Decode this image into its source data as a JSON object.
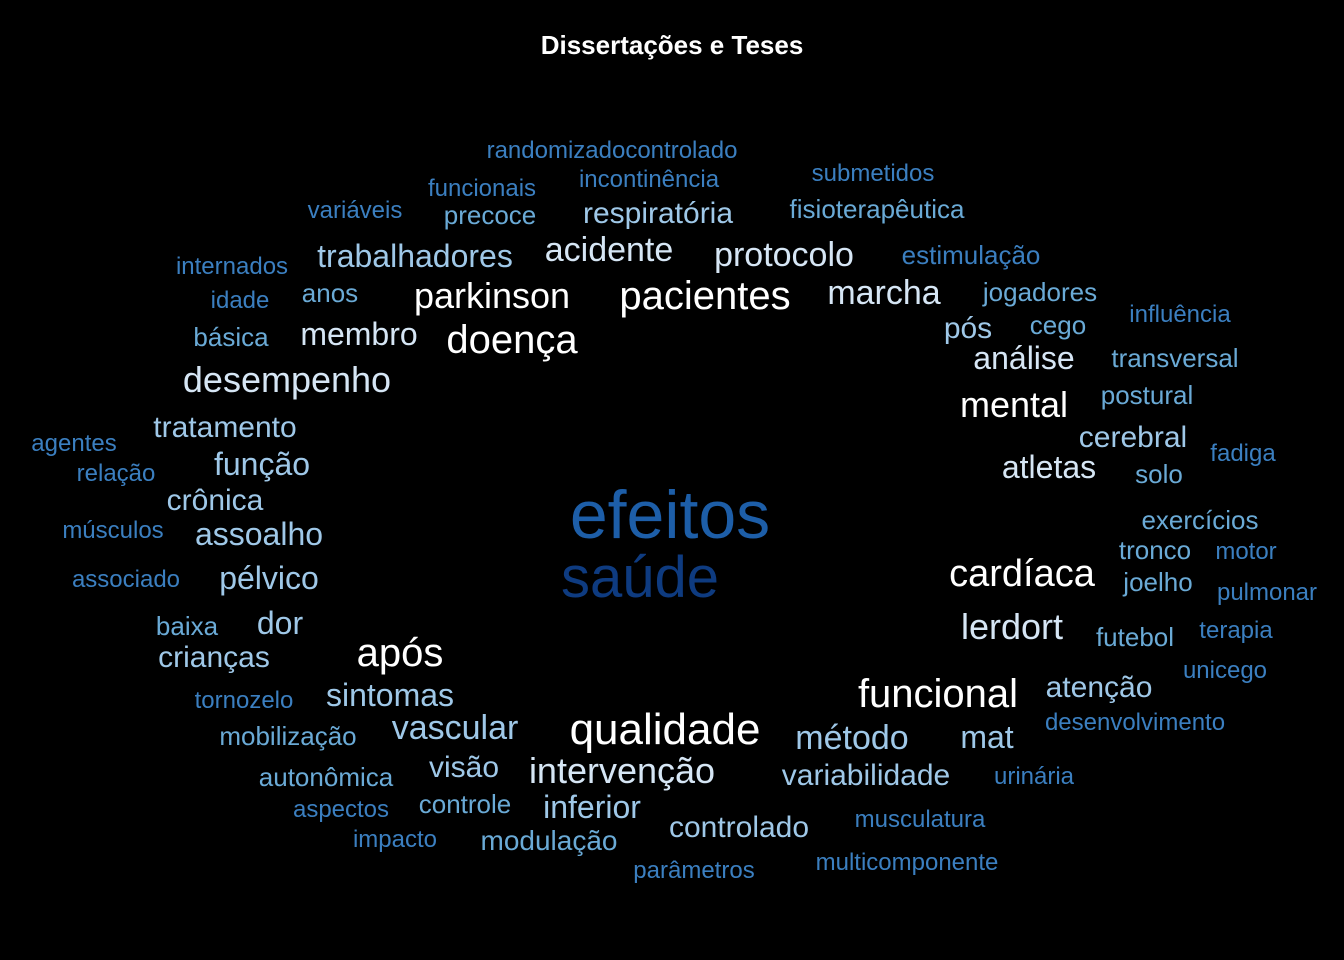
{
  "title": "Dissertações e Teses",
  "colors": {
    "background": "#000000",
    "title": "#ffffff",
    "tier_white": "#ffffff",
    "tier_pale": "#d6e6f5",
    "tier_light": "#9fc8e8",
    "tier_mid": "#6aaad6",
    "tier_blue": "#3b7fc0",
    "tier_deep": "#1d5ea8",
    "tier_navy": "#0e3b80"
  },
  "words": [
    {
      "text": "efeitos",
      "tier": "tier_deep"
    },
    {
      "text": "saúde",
      "tier": "tier_navy"
    },
    {
      "text": "qualidade",
      "tier": "tier_white"
    },
    {
      "text": "pacientes",
      "tier": "tier_white"
    },
    {
      "text": "funcional",
      "tier": "tier_white"
    },
    {
      "text": "cardíaca",
      "tier": "tier_white"
    },
    {
      "text": "após",
      "tier": "tier_white"
    },
    {
      "text": "doença",
      "tier": "tier_white"
    },
    {
      "text": "parkinson",
      "tier": "tier_white"
    },
    {
      "text": "mental",
      "tier": "tier_white"
    },
    {
      "text": "lerdort",
      "tier": "tier_pale"
    },
    {
      "text": "intervenção",
      "tier": "tier_pale"
    },
    {
      "text": "desempenho",
      "tier": "tier_pale"
    },
    {
      "text": "marcha",
      "tier": "tier_pale"
    },
    {
      "text": "protocolo",
      "tier": "tier_pale"
    },
    {
      "text": "acidente",
      "tier": "tier_pale"
    },
    {
      "text": "membro",
      "tier": "tier_pale"
    },
    {
      "text": "análise",
      "tier": "tier_pale"
    },
    {
      "text": "atletas",
      "tier": "tier_pale"
    },
    {
      "text": "método",
      "tier": "tier_light"
    },
    {
      "text": "vascular",
      "tier": "tier_light"
    },
    {
      "text": "sintomas",
      "tier": "tier_light"
    },
    {
      "text": "assoalho",
      "tier": "tier_light"
    },
    {
      "text": "pélvico",
      "tier": "tier_light"
    },
    {
      "text": "função",
      "tier": "tier_light"
    },
    {
      "text": "trabalhadores",
      "tier": "tier_light"
    },
    {
      "text": "respiratória",
      "tier": "tier_light"
    },
    {
      "text": "tratamento",
      "tier": "tier_light"
    },
    {
      "text": "crônica",
      "tier": "tier_light"
    },
    {
      "text": "dor",
      "tier": "tier_light"
    },
    {
      "text": "crianças",
      "tier": "tier_light"
    },
    {
      "text": "mat",
      "tier": "tier_light"
    },
    {
      "text": "variabilidade",
      "tier": "tier_light"
    },
    {
      "text": "controlado",
      "tier": "tier_light"
    },
    {
      "text": "visão",
      "tier": "tier_light"
    },
    {
      "text": "inferior",
      "tier": "tier_light"
    },
    {
      "text": "cerebral",
      "tier": "tier_light"
    },
    {
      "text": "pós",
      "tier": "tier_light"
    },
    {
      "text": "atenção",
      "tier": "tier_light"
    },
    {
      "text": "fisioterapêutica",
      "tier": "tier_mid"
    },
    {
      "text": "modulação",
      "tier": "tier_mid"
    },
    {
      "text": "autonômica",
      "tier": "tier_mid"
    },
    {
      "text": "mobilização",
      "tier": "tier_mid"
    },
    {
      "text": "controle",
      "tier": "tier_mid"
    },
    {
      "text": "baixa",
      "tier": "tier_mid"
    },
    {
      "text": "anos",
      "tier": "tier_mid"
    },
    {
      "text": "básica",
      "tier": "tier_mid"
    },
    {
      "text": "precoce",
      "tier": "tier_mid"
    },
    {
      "text": "jogadores",
      "tier": "tier_mid"
    },
    {
      "text": "cego",
      "tier": "tier_mid"
    },
    {
      "text": "transversal",
      "tier": "tier_mid"
    },
    {
      "text": "postural",
      "tier": "tier_mid"
    },
    {
      "text": "solo",
      "tier": "tier_mid"
    },
    {
      "text": "exercícios",
      "tier": "tier_mid"
    },
    {
      "text": "tronco",
      "tier": "tier_mid"
    },
    {
      "text": "joelho",
      "tier": "tier_mid"
    },
    {
      "text": "futebol",
      "tier": "tier_mid"
    },
    {
      "text": "estimulação",
      "tier": "tier_blue"
    },
    {
      "text": "randomizadocontrolado",
      "tier": "tier_blue"
    },
    {
      "text": "incontinência",
      "tier": "tier_blue"
    },
    {
      "text": "funcionais",
      "tier": "tier_blue"
    },
    {
      "text": "submetidos",
      "tier": "tier_blue"
    },
    {
      "text": "variáveis",
      "tier": "tier_blue"
    },
    {
      "text": "internados",
      "tier": "tier_blue"
    },
    {
      "text": "idade",
      "tier": "tier_blue"
    },
    {
      "text": "influência",
      "tier": "tier_blue"
    },
    {
      "text": "agentes",
      "tier": "tier_blue"
    },
    {
      "text": "relação",
      "tier": "tier_blue"
    },
    {
      "text": "músculos",
      "tier": "tier_blue"
    },
    {
      "text": "associado",
      "tier": "tier_blue"
    },
    {
      "text": "tornozelo",
      "tier": "tier_blue"
    },
    {
      "text": "aspectos",
      "tier": "tier_blue"
    },
    {
      "text": "impacto",
      "tier": "tier_blue"
    },
    {
      "text": "parâmetros",
      "tier": "tier_blue"
    },
    {
      "text": "multicomponente",
      "tier": "tier_blue"
    },
    {
      "text": "musculatura",
      "tier": "tier_blue"
    },
    {
      "text": "urinária",
      "tier": "tier_blue"
    },
    {
      "text": "desenvolvimento",
      "tier": "tier_blue"
    },
    {
      "text": "unicego",
      "tier": "tier_blue"
    },
    {
      "text": "terapia",
      "tier": "tier_blue"
    },
    {
      "text": "pulmonar",
      "tier": "tier_blue"
    },
    {
      "text": "motor",
      "tier": "tier_blue"
    },
    {
      "text": "fadiga",
      "tier": "tier_blue"
    }
  ]
}
